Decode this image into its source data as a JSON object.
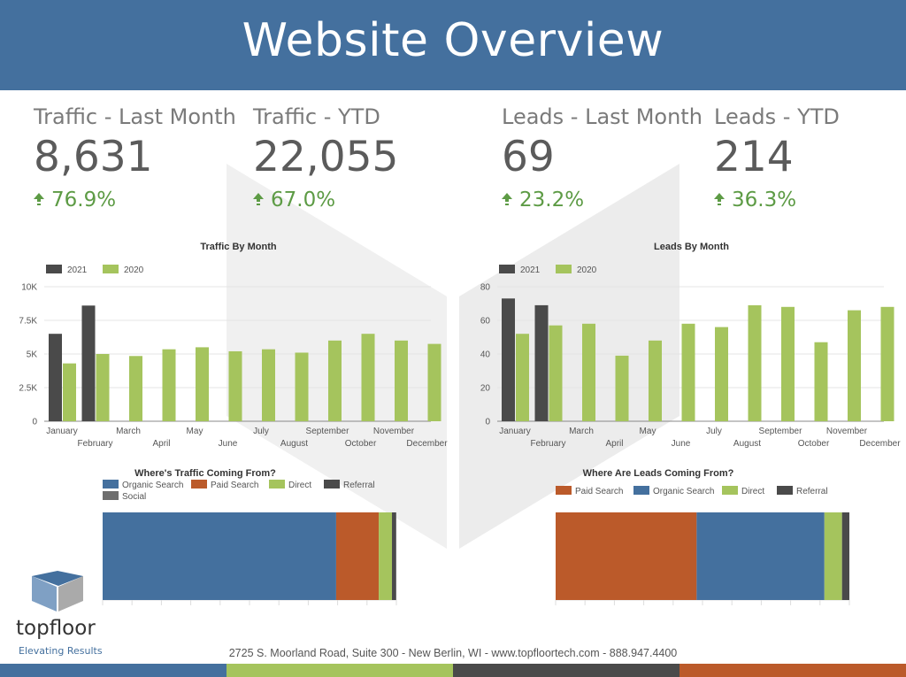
{
  "header": {
    "title": "Website Overview"
  },
  "kpis": [
    {
      "label": "Traffic - Last Month",
      "value": "8,631",
      "delta": "76.9%"
    },
    {
      "label": "Traffic - YTD",
      "value": "22,055",
      "delta": "67.0%"
    },
    {
      "label": "Leads - Last Month",
      "value": "69",
      "delta": "23.2%"
    },
    {
      "label": "Leads - YTD",
      "value": "214",
      "delta": "36.3%"
    }
  ],
  "colors": {
    "header": "#44709e",
    "y2021": "#4a4a4a",
    "y2020": "#a5c45d",
    "organic": "#44709e",
    "paid": "#bb5a2a",
    "direct": "#a5c45d",
    "referral": "#4a4a4a",
    "social": "#6e6e6e",
    "up": "#5d9b45"
  },
  "chart_data": [
    {
      "type": "bar",
      "title": "Traffic By Month",
      "categories": [
        "January",
        "February",
        "March",
        "April",
        "May",
        "June",
        "July",
        "August",
        "September",
        "October",
        "November",
        "December"
      ],
      "series": [
        {
          "name": "2021",
          "values": [
            6500,
            8600,
            null,
            null,
            null,
            null,
            null,
            null,
            null,
            null,
            null,
            null
          ]
        },
        {
          "name": "2020",
          "values": [
            4300,
            5000,
            4850,
            5350,
            5500,
            5200,
            5350,
            5100,
            6000,
            6500,
            6000,
            5750
          ]
        }
      ],
      "yticks": [
        "0",
        "2.5K",
        "5K",
        "7.5K",
        "10K"
      ],
      "ylim": [
        0,
        10000
      ]
    },
    {
      "type": "bar",
      "title": "Leads By Month",
      "categories": [
        "January",
        "February",
        "March",
        "April",
        "May",
        "June",
        "July",
        "August",
        "September",
        "October",
        "November",
        "December"
      ],
      "series": [
        {
          "name": "2021",
          "values": [
            73,
            69,
            null,
            null,
            null,
            null,
            null,
            null,
            null,
            null,
            null,
            null
          ]
        },
        {
          "name": "2020",
          "values": [
            52,
            57,
            58,
            39,
            48,
            58,
            56,
            69,
            68,
            47,
            66,
            68
          ]
        }
      ],
      "yticks": [
        "0",
        "20",
        "40",
        "60",
        "80"
      ],
      "ylim": [
        0,
        80
      ]
    },
    {
      "type": "bar",
      "orientation": "horizontal-stacked",
      "title": "Where's Traffic Coming From?",
      "segments": [
        {
          "name": "Organic Search",
          "value": 79.5,
          "color": "#44709e"
        },
        {
          "name": "Paid Search",
          "value": 14.5,
          "color": "#bb5a2a"
        },
        {
          "name": "Direct",
          "value": 4.5,
          "color": "#a5c45d"
        },
        {
          "name": "Referral",
          "value": 1.2,
          "color": "#4a4a4a"
        },
        {
          "name": "Social",
          "value": 0.3,
          "color": "#6e6e6e"
        }
      ]
    },
    {
      "type": "bar",
      "orientation": "horizontal-stacked",
      "title": "Where Are Leads Coming From?",
      "segments": [
        {
          "name": "Paid Search",
          "value": 48,
          "color": "#bb5a2a"
        },
        {
          "name": "Organic Search",
          "value": 43.5,
          "color": "#44709e"
        },
        {
          "name": "Direct",
          "value": 6,
          "color": "#a5c45d"
        },
        {
          "name": "Referral",
          "value": 2.5,
          "color": "#4a4a4a"
        }
      ]
    }
  ],
  "logo": {
    "brand": "topfloor",
    "tagline": "Elevating Results"
  },
  "footer": {
    "text": "2725 S. Moorland Road, Suite 300 - New Berlin, WI - www.topfloortech.com - 888.947.4400"
  }
}
